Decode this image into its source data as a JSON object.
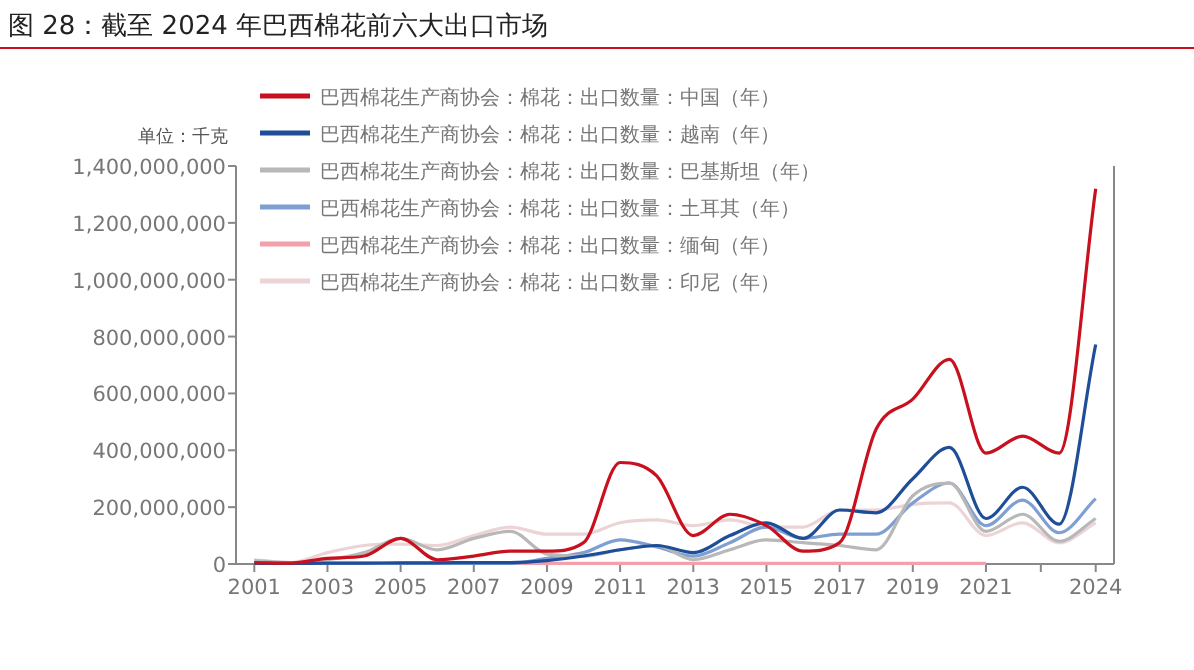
{
  "chart_data": {
    "type": "line",
    "title": "图 28：截至 2024 年巴西棉花前六大出口市场",
    "ylabel": "单位：千克",
    "x": [
      2001,
      2002,
      2003,
      2004,
      2005,
      2006,
      2007,
      2008,
      2009,
      2010,
      2011,
      2012,
      2013,
      2014,
      2015,
      2016,
      2017,
      2018,
      2019,
      2020,
      2021,
      2022,
      2023,
      2024
    ],
    "xlim": [
      2000.5,
      2024.5
    ],
    "xticks": [
      2001,
      2003,
      2005,
      2007,
      2009,
      2011,
      2013,
      2015,
      2017,
      2019,
      2021,
      {
        "value": 2022.5,
        "label": null
      },
      2024
    ],
    "ylim": [
      0,
      1400000000
    ],
    "yticks": [
      {
        "value": 0,
        "label": "0"
      },
      {
        "value": 200000000,
        "label": "200,000,000"
      },
      {
        "value": 400000000,
        "label": "400,000,000"
      },
      {
        "value": 600000000,
        "label": "600,000,000"
      },
      {
        "value": 800000000,
        "label": "800,000,000"
      },
      {
        "value": 1000000000,
        "label": "1,000,000,000"
      },
      {
        "value": 1200000000,
        "label": "1,200,000,000"
      },
      {
        "value": 1400000000,
        "label": "1,400,000,000"
      }
    ],
    "grid": false,
    "legend": "top left",
    "line_style": "solid",
    "series": [
      {
        "name": "巴西棉花生产商协会：棉花：出口数量：中国（年）",
        "color": "#c8101e",
        "values": [
          5000000,
          3000000,
          20000000,
          28000000,
          90000000,
          15000000,
          28000000,
          45000000,
          45000000,
          75000000,
          357000000,
          310000000,
          100000000,
          175000000,
          135000000,
          45000000,
          75000000,
          475000000,
          580000000,
          720000000,
          390000000,
          450000000,
          390000000,
          1320000000
        ]
      },
      {
        "name": "巴西棉花生产商协会：棉花：出口数量：越南（年）",
        "color": "#1f4e99",
        "values": [
          2000000,
          2000000,
          3000000,
          3000000,
          4000000,
          4000000,
          5000000,
          5000000,
          12000000,
          28000000,
          50000000,
          65000000,
          40000000,
          100000000,
          145000000,
          90000000,
          190000000,
          180000000,
          300000000,
          410000000,
          160000000,
          270000000,
          140000000,
          772000000
        ]
      },
      {
        "name": "巴西棉花生产商协会：棉花：出口数量：巴基斯坦（年）",
        "color": "#b8b8b8",
        "values": [
          12000000,
          5000000,
          15000000,
          40000000,
          90000000,
          50000000,
          90000000,
          115000000,
          35000000,
          28000000,
          50000000,
          65000000,
          15000000,
          50000000,
          85000000,
          75000000,
          65000000,
          50000000,
          240000000,
          285000000,
          115000000,
          175000000,
          80000000,
          160000000
        ]
      },
      {
        "name": "巴西棉花生产商协会：棉花：出口数量：土耳其（年）",
        "color": "#7f9fd3",
        "values": [
          2000000,
          2000000,
          2000000,
          2000000,
          2000000,
          2000000,
          2000000,
          2000000,
          20000000,
          40000000,
          85000000,
          60000000,
          28000000,
          75000000,
          130000000,
          90000000,
          105000000,
          105000000,
          215000000,
          285000000,
          135000000,
          225000000,
          110000000,
          230000000
        ]
      },
      {
        "name": "巴西棉花生产商协会：棉花：出口数量：缅甸（年）",
        "color": "#f4a0aa",
        "values": [
          2000000,
          2000000,
          2000000,
          2000000,
          2000000,
          2000000,
          2000000,
          2000000,
          2000000,
          2000000,
          2000000,
          2000000,
          2000000,
          2000000,
          2000000,
          2000000,
          2000000,
          2000000,
          2000000,
          2000000,
          2000000,
          null,
          null,
          null
        ]
      },
      {
        "name": "巴西棉花生产商协会：棉花：出口数量：印尼（年）",
        "color": "#ecd3d6",
        "values": [
          15000000,
          5000000,
          40000000,
          65000000,
          70000000,
          65000000,
          100000000,
          130000000,
          105000000,
          105000000,
          145000000,
          155000000,
          135000000,
          155000000,
          130000000,
          130000000,
          190000000,
          190000000,
          210000000,
          215000000,
          100000000,
          145000000,
          75000000,
          145000000
        ]
      }
    ]
  }
}
